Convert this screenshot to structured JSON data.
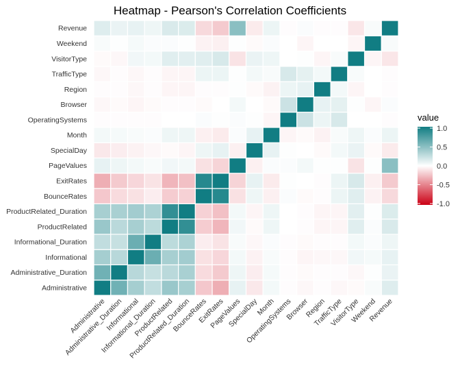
{
  "chart_data": {
    "type": "heatmap",
    "title": "Heatmap - Pearson's Correlation Coefficients",
    "xlabel": "",
    "ylabel": "",
    "variables": [
      "Administrative",
      "Administrative_Duration",
      "Informational",
      "Informational_Duration",
      "ProductRelated",
      "ProductRelated_Duration",
      "BounceRates",
      "ExitRates",
      "PageValues",
      "SpecialDay",
      "Month",
      "OperatingSystems",
      "Browser",
      "Region",
      "TrafficType",
      "VisitorType",
      "Weekend",
      "Revenue"
    ],
    "matrix": [
      [
        1.0,
        0.6,
        0.38,
        0.26,
        0.43,
        0.37,
        -0.22,
        -0.32,
        0.1,
        -0.09,
        0.05,
        -0.01,
        -0.03,
        -0.01,
        -0.03,
        -0.02,
        0.03,
        0.14
      ],
      [
        0.6,
        1.0,
        0.3,
        0.24,
        0.29,
        0.36,
        -0.14,
        -0.21,
        0.07,
        -0.07,
        0.04,
        -0.01,
        -0.02,
        -0.01,
        -0.01,
        -0.03,
        0.01,
        0.09
      ],
      [
        0.38,
        0.3,
        1.0,
        0.62,
        0.37,
        0.39,
        -0.12,
        -0.16,
        0.05,
        -0.05,
        0.03,
        -0.01,
        -0.04,
        -0.03,
        -0.03,
        0.06,
        0.04,
        0.1
      ],
      [
        0.26,
        0.24,
        0.62,
        1.0,
        0.28,
        0.35,
        -0.07,
        -0.11,
        0.03,
        -0.03,
        0.02,
        -0.01,
        -0.02,
        -0.01,
        -0.01,
        0.05,
        0.02,
        0.07
      ],
      [
        0.43,
        0.29,
        0.37,
        0.28,
        1.0,
        0.86,
        -0.2,
        -0.29,
        0.06,
        -0.02,
        0.07,
        0.0,
        -0.01,
        -0.04,
        -0.04,
        0.13,
        0.02,
        0.16
      ],
      [
        0.37,
        0.36,
        0.39,
        0.35,
        0.86,
        1.0,
        -0.18,
        -0.25,
        0.05,
        -0.04,
        0.07,
        0.0,
        -0.01,
        -0.04,
        -0.04,
        0.12,
        0.01,
        0.15
      ],
      [
        -0.22,
        -0.14,
        -0.12,
        -0.07,
        -0.2,
        -0.18,
        1.0,
        0.91,
        -0.12,
        0.07,
        -0.06,
        0.02,
        -0.02,
        -0.01,
        0.08,
        0.13,
        -0.05,
        -0.15
      ],
      [
        -0.32,
        -0.21,
        -0.16,
        -0.11,
        -0.29,
        -0.25,
        0.91,
        1.0,
        -0.17,
        0.1,
        -0.08,
        0.01,
        -0.0,
        -0.01,
        0.08,
        0.17,
        -0.06,
        -0.21
      ],
      [
        0.1,
        0.07,
        0.05,
        0.03,
        0.06,
        0.05,
        -0.12,
        -0.17,
        1.0,
        -0.06,
        0.02,
        0.02,
        0.05,
        0.01,
        0.01,
        -0.11,
        0.01,
        0.49
      ],
      [
        -0.09,
        -0.07,
        -0.05,
        -0.03,
        -0.02,
        -0.04,
        0.07,
        0.1,
        -0.06,
        1.0,
        0.1,
        0.01,
        0.0,
        -0.02,
        0.05,
        0.09,
        -0.02,
        -0.08
      ],
      [
        0.05,
        0.04,
        0.03,
        0.02,
        0.07,
        0.07,
        -0.06,
        -0.08,
        0.02,
        0.1,
        1.0,
        -0.04,
        -0.02,
        -0.05,
        0.03,
        0.07,
        0.02,
        0.08
      ],
      [
        -0.01,
        -0.01,
        -0.01,
        -0.01,
        0.0,
        0.0,
        0.02,
        0.01,
        0.02,
        0.01,
        -0.04,
        1.0,
        0.22,
        0.08,
        0.17,
        0.0,
        0.0,
        -0.01
      ],
      [
        -0.03,
        -0.02,
        -0.04,
        -0.02,
        -0.01,
        -0.01,
        -0.02,
        -0.0,
        0.05,
        0.0,
        -0.02,
        0.22,
        1.0,
        0.1,
        0.11,
        0.01,
        -0.04,
        0.02
      ],
      [
        -0.01,
        -0.01,
        -0.03,
        -0.01,
        -0.04,
        -0.04,
        -0.01,
        -0.01,
        0.01,
        -0.02,
        -0.05,
        0.08,
        0.1,
        1.0,
        0.05,
        -0.04,
        0.0,
        -0.01
      ],
      [
        -0.03,
        -0.01,
        -0.03,
        -0.01,
        -0.04,
        -0.04,
        0.08,
        0.08,
        0.01,
        0.05,
        0.03,
        0.17,
        0.11,
        0.05,
        1.0,
        0.03,
        -0.0,
        -0.01
      ],
      [
        -0.02,
        -0.03,
        0.06,
        0.05,
        0.13,
        0.12,
        0.13,
        0.17,
        -0.11,
        0.09,
        0.07,
        0.0,
        0.01,
        -0.04,
        0.03,
        1.0,
        -0.04,
        -0.1
      ],
      [
        0.03,
        0.01,
        0.04,
        0.02,
        0.02,
        0.01,
        -0.05,
        -0.06,
        0.01,
        -0.02,
        0.02,
        0.0,
        -0.04,
        0.0,
        -0.0,
        -0.04,
        1.0,
        0.03
      ],
      [
        0.14,
        0.09,
        0.1,
        0.07,
        0.16,
        0.15,
        -0.15,
        -0.21,
        0.49,
        -0.08,
        0.08,
        -0.01,
        0.02,
        -0.01,
        -0.01,
        -0.1,
        0.03,
        1.0
      ]
    ],
    "scale": {
      "name": "value",
      "min": -1.0,
      "max": 1.0,
      "ticks": [
        1.0,
        0.5,
        0.0,
        -0.5,
        -1.0
      ],
      "tick_labels": [
        "1.0",
        "0.5",
        "0.0",
        "-0.5",
        "-1.0"
      ],
      "low_color": "#cb0115",
      "mid_color": "#ffffff",
      "high_color": "#117d83"
    },
    "grid": false,
    "legend_position": "right"
  }
}
